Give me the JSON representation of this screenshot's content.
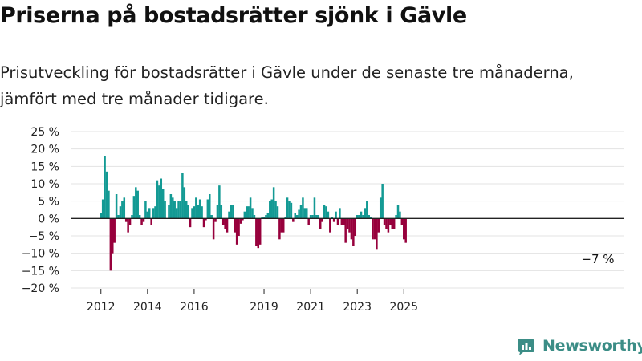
{
  "title": "Priserna på bostadsrätter sjönk i Gävle",
  "subtitle": "Prisutveckling för bostadsrätter i Gävle under de senaste tre månaderna, jämfört med tre månader tidigare.",
  "brand": "Newsworthy",
  "colors": {
    "positive": "#139a94",
    "negative": "#97003c",
    "logo": "#3b8d86"
  },
  "chart_data": {
    "type": "bar",
    "ylim": [
      -20,
      25
    ],
    "yticks": [
      25,
      20,
      15,
      10,
      5,
      0,
      -5,
      -10,
      -15,
      -20
    ],
    "ytick_labels": [
      "25 %",
      "20 %",
      "15 %",
      "10 %",
      "5 %",
      "0 %",
      "−5 %",
      "−10 %",
      "−15 %",
      "−20 %"
    ],
    "xticks": [
      "2012",
      "2014",
      "2016",
      "2019",
      "2021",
      "2023",
      "2025"
    ],
    "xtick_index": [
      0,
      24,
      48,
      84,
      108,
      132,
      156
    ],
    "annotation": {
      "text": "−7 %",
      "index": 156
    },
    "grid": true,
    "values": [
      1.5,
      5.5,
      18,
      13.5,
      8,
      -15,
      -10,
      -7,
      7,
      1,
      3.5,
      5,
      6,
      -1,
      -4,
      -2,
      1,
      6.5,
      9,
      8,
      1,
      -2,
      -1,
      5,
      2,
      3,
      -2,
      3,
      3.5,
      11,
      9.5,
      11.5,
      8.5,
      5,
      0,
      4,
      7,
      6,
      5,
      3,
      5,
      5,
      13,
      9,
      5,
      4,
      -2.5,
      3,
      3.5,
      6,
      4,
      5.5,
      3.5,
      -2.5,
      -0.5,
      5.5,
      7,
      1,
      -6,
      -1,
      4,
      9.5,
      4,
      -2,
      -3,
      -4,
      2,
      4,
      4,
      -4,
      -7.5,
      -5,
      -1.5,
      -0.5,
      2,
      3.5,
      3.5,
      6,
      3,
      1,
      -8,
      -8.5,
      -7.5,
      0.5,
      0.5,
      1,
      1.5,
      5,
      5.5,
      9,
      5,
      3.5,
      -6,
      -4,
      -4,
      0.5,
      6,
      5,
      4.5,
      -1,
      1.5,
      1,
      2.5,
      4,
      6,
      3,
      3,
      -2,
      1,
      1,
      6,
      1,
      1,
      -3,
      -1,
      4,
      3.5,
      2,
      -4,
      0.5,
      -1,
      2,
      -2,
      3,
      -2,
      -2,
      -7,
      -3,
      -4,
      -6,
      -8,
      -5,
      1,
      1,
      2,
      1,
      3,
      5,
      1,
      0.5,
      -6,
      -6,
      -9,
      -4,
      6,
      10,
      -2,
      -3,
      -4,
      -2,
      -3,
      -3,
      1,
      4,
      2,
      -2,
      -6,
      -7
    ]
  }
}
